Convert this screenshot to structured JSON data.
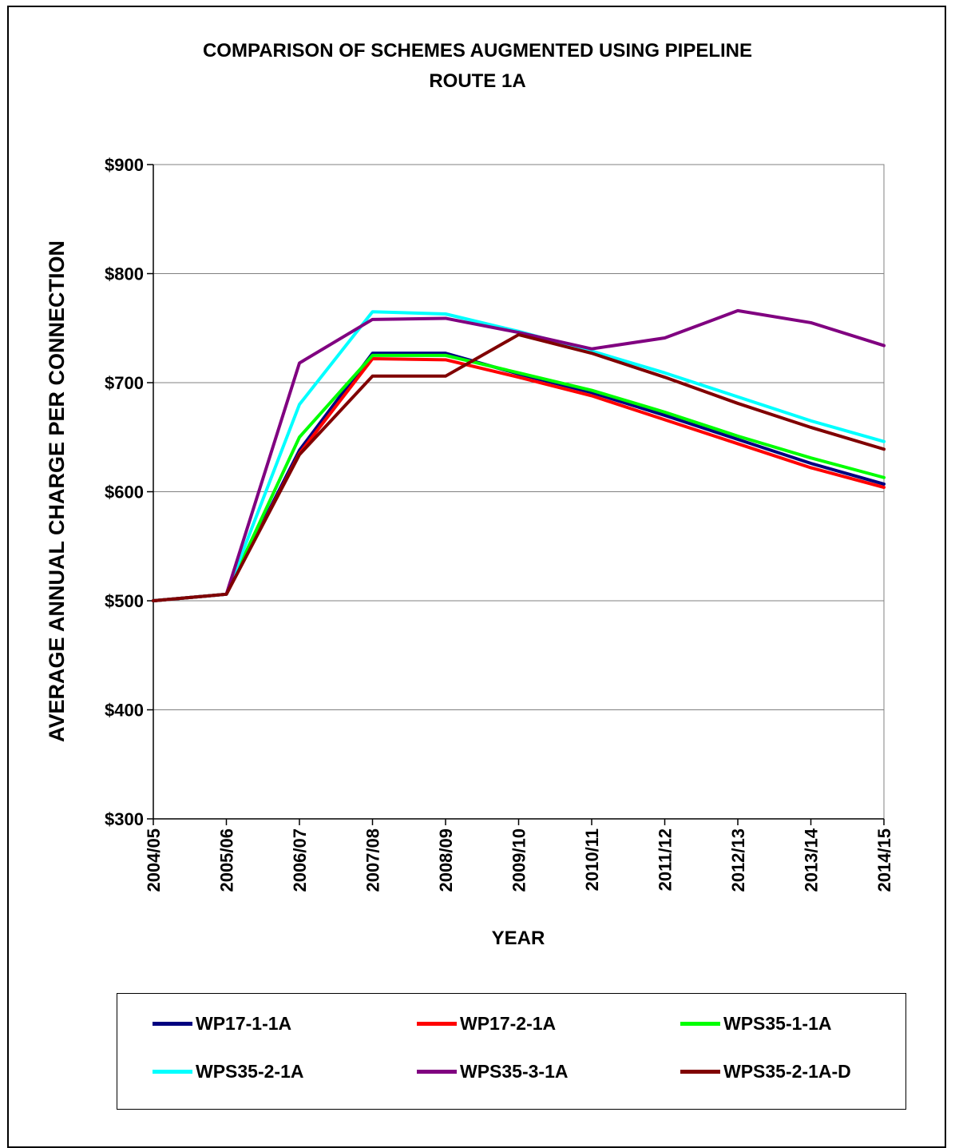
{
  "chart_data": {
    "type": "line",
    "title_lines": [
      "COMPARISON OF SCHEMES AUGMENTED USING PIPELINE",
      "ROUTE 1A"
    ],
    "xlabel": "YEAR",
    "ylabel": "AVERAGE ANNUAL CHARGE PER CONNECTION",
    "categories": [
      "2004/05",
      "2005/06",
      "2006/07",
      "2007/08",
      "2008/09",
      "2009/10",
      "2010/11",
      "2011/12",
      "2012/13",
      "2013/14",
      "2014/15"
    ],
    "ylim": [
      300,
      900
    ],
    "yticks": [
      300,
      400,
      500,
      600,
      700,
      800,
      900
    ],
    "ytick_labels": [
      "$300",
      "$400",
      "$500",
      "$600",
      "$700",
      "$800",
      "$900"
    ],
    "grid": "horizontal",
    "legend_position": "bottom",
    "series": [
      {
        "name": "WP17-1-1A",
        "color": "#000080",
        "values": [
          500,
          506,
          638,
          727,
          727,
          708,
          691,
          670,
          648,
          626,
          607
        ]
      },
      {
        "name": "WP17-2-1A",
        "color": "#ff0000",
        "values": [
          500,
          506,
          635,
          722,
          721,
          705,
          688,
          666,
          644,
          622,
          604
        ]
      },
      {
        "name": "WPS35-1-1A",
        "color": "#00ff00",
        "values": [
          500,
          506,
          650,
          725,
          725,
          709,
          693,
          673,
          651,
          631,
          613
        ]
      },
      {
        "name": "WPS35-2-1A",
        "color": "#00ffff",
        "values": [
          500,
          506,
          680,
          765,
          763,
          747,
          729,
          709,
          687,
          665,
          646
        ]
      },
      {
        "name": "WPS35-3-1A",
        "color": "#800080",
        "values": [
          500,
          506,
          718,
          758,
          759,
          746,
          731,
          741,
          766,
          755,
          734
        ]
      },
      {
        "name": "WPS35-2-1A-D",
        "color": "#800000",
        "values": [
          500,
          506,
          634,
          706,
          706,
          744,
          727,
          705,
          681,
          659,
          639
        ]
      }
    ]
  }
}
